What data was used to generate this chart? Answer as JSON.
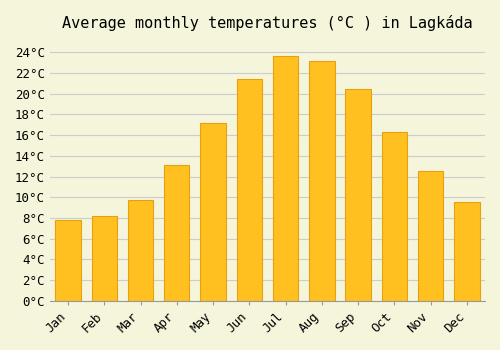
{
  "title": "Average monthly temperatures (°C ) in Lagkáda",
  "months": [
    "Jan",
    "Feb",
    "Mar",
    "Apr",
    "May",
    "Jun",
    "Jul",
    "Aug",
    "Sep",
    "Oct",
    "Nov",
    "Dec"
  ],
  "values": [
    7.8,
    8.2,
    9.7,
    13.1,
    17.2,
    21.4,
    23.6,
    23.2,
    20.5,
    16.3,
    12.5,
    9.5
  ],
  "bar_color": "#FFC020",
  "bar_edge_color": "#E8A010",
  "background_color": "#F5F5DC",
  "grid_color": "#CCCCCC",
  "ylim": [
    0,
    25
  ],
  "yticks": [
    0,
    2,
    4,
    6,
    8,
    10,
    12,
    14,
    16,
    18,
    20,
    22,
    24
  ],
  "title_fontsize": 11,
  "tick_fontsize": 9
}
